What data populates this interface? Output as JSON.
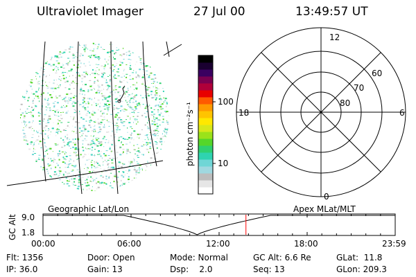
{
  "header": {
    "instrument": "Ultraviolet Imager",
    "date": "27 Jul 00",
    "time": "13:49:57 UT"
  },
  "colorbar": {
    "unit_label": "photon cm⁻²s⁻¹",
    "ticks": [
      {
        "value": 100,
        "label": "100"
      },
      {
        "value": 10,
        "label": "10"
      }
    ],
    "colors": [
      "#ffffff",
      "#e6e6e6",
      "#bdbdbd",
      "#a0d8e0",
      "#6fd6d6",
      "#2fd3b0",
      "#2fd070",
      "#55d62a",
      "#9be21a",
      "#d8e81a",
      "#ffe800",
      "#ffc400",
      "#ff9a00",
      "#ff5a00",
      "#e80000",
      "#b0003a",
      "#7a0050",
      "#3a0060",
      "#1a0030",
      "#000000"
    ]
  },
  "polar_plot": {
    "mlt_labels": {
      "top": "12",
      "left": "18",
      "right": "6",
      "bottom": "0"
    },
    "lat_labels": [
      {
        "value": 60,
        "label": "60"
      },
      {
        "value": 70,
        "label": "70"
      },
      {
        "value": 80,
        "label": "80"
      }
    ]
  },
  "timeline": {
    "left_label": "Geographic Lat/Lon",
    "right_label": "Apex MLat/MLT",
    "y_axis_label": "GC Alt",
    "y_ticks": [
      "9.0",
      "1.8"
    ],
    "x_ticks": [
      "00:00",
      "06:00",
      "12:00",
      "18:00",
      "23:59"
    ],
    "current_time_hours": 13.83,
    "marker_color": "#ff0000"
  },
  "footer": {
    "flt": "Flt: 1356",
    "ip": "IP: 36.0",
    "door": "Door: Open",
    "gain": "Gain: 13",
    "mode": "Mode: Normal",
    "dsp": "Dsp:    2.0",
    "gcalt": "GC Alt: 6.6 Re",
    "seq": "Seq: 13",
    "glat": "GLat:  11.8",
    "glon": "GLon: 209.3"
  }
}
